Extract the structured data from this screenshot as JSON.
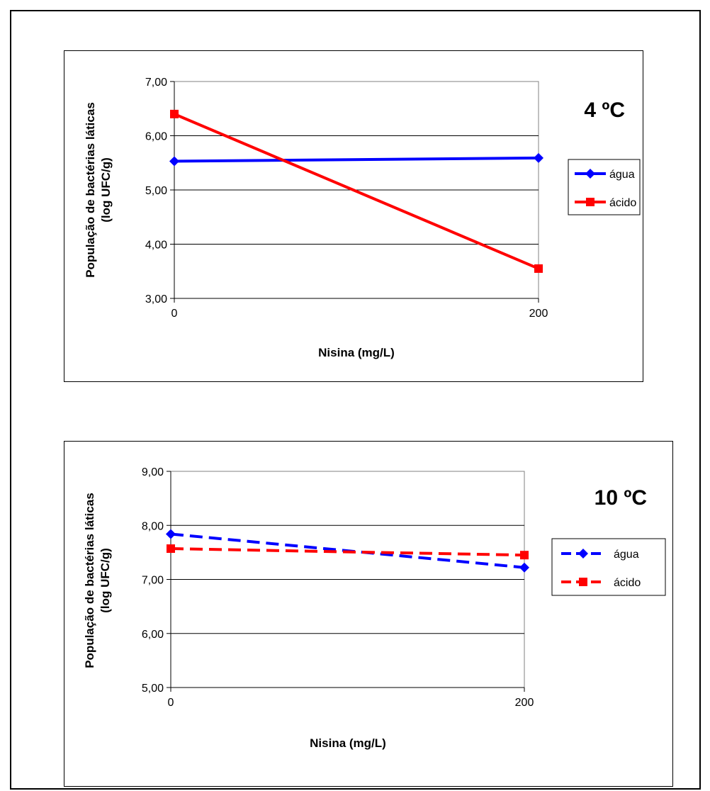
{
  "chart_data": [
    {
      "type": "line",
      "temperature_label": "4 ºC",
      "xlabel": "Nisina (mg/L)",
      "ylabel": [
        "População de bactérias láticas",
        "(log UFC/g)"
      ],
      "categories": [
        "0",
        "200"
      ],
      "ylim": [
        3.0,
        7.0
      ],
      "yticks": [
        "3,00",
        "4,00",
        "5,00",
        "6,00",
        "7,00"
      ],
      "grid": true,
      "legend_position": "right",
      "series": [
        {
          "name": "água",
          "values": [
            5.53,
            5.59
          ],
          "color": "#0000ff",
          "marker": "diamond",
          "dash": false
        },
        {
          "name": "ácido",
          "values": [
            6.4,
            3.55
          ],
          "color": "#ff0000",
          "marker": "square",
          "dash": false
        }
      ]
    },
    {
      "type": "line",
      "temperature_label": "10 ºC",
      "xlabel": "Nisina (mg/L)",
      "ylabel": [
        "População de bactérias láticas",
        "(log UFC/g)"
      ],
      "categories": [
        "0",
        "200"
      ],
      "ylim": [
        5.0,
        9.0
      ],
      "yticks": [
        "5,00",
        "6,00",
        "7,00",
        "8,00",
        "9,00"
      ],
      "grid": true,
      "legend_position": "right",
      "series": [
        {
          "name": "água",
          "values": [
            7.84,
            7.22
          ],
          "color": "#0000ff",
          "marker": "diamond",
          "dash": true
        },
        {
          "name": "ácido",
          "values": [
            7.57,
            7.45
          ],
          "color": "#ff0000",
          "marker": "square",
          "dash": true
        }
      ]
    }
  ]
}
